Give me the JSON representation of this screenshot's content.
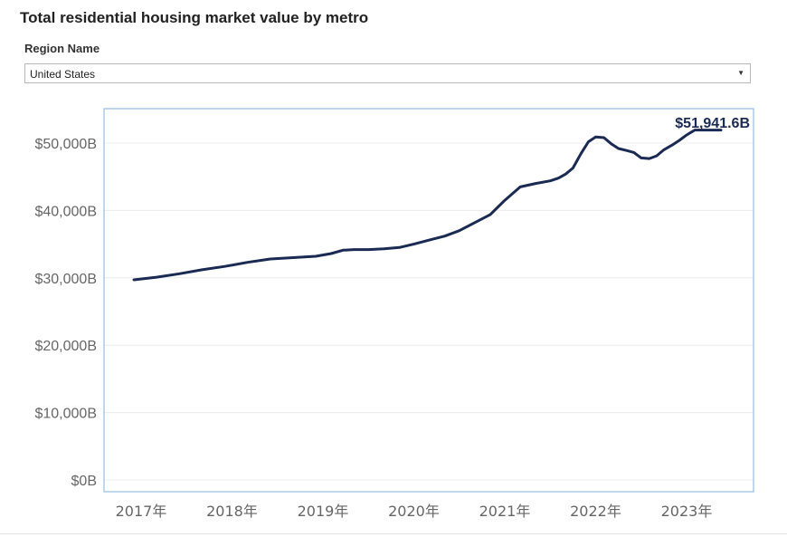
{
  "header": {
    "title": "Total residential housing market value by metro"
  },
  "filter": {
    "label": "Region Name",
    "selected": "United States",
    "arrow_icon": "caret-down-icon"
  },
  "colors": {
    "line": "#1b2a52",
    "border": "#7fb2dd",
    "grid": "#ececec",
    "tick": "#666666"
  },
  "chart_data": {
    "type": "line",
    "title": "Total residential housing market value by metro",
    "xlabel": "",
    "ylabel": "",
    "x_ticks": [
      "2017年",
      "2018年",
      "2019年",
      "2020年",
      "2021年",
      "2022年",
      "2023年"
    ],
    "y_ticks": [
      "$0B",
      "$10,000B",
      "$20,000B",
      "$30,000B",
      "$40,000B",
      "$50,000B"
    ],
    "ylim": [
      0,
      54000
    ],
    "xlim": [
      2017.0,
      2024.0
    ],
    "grid": true,
    "series": [
      {
        "name": "",
        "x": [
          2017.0,
          2017.25,
          2017.5,
          2017.75,
          2018.0,
          2018.25,
          2018.5,
          2018.75,
          2019.0,
          2019.17,
          2019.3,
          2019.42,
          2019.58,
          2019.75,
          2019.92,
          2020.08,
          2020.25,
          2020.42,
          2020.58,
          2020.75,
          2020.92,
          2021.08,
          2021.25,
          2021.42,
          2021.58,
          2021.67,
          2021.75,
          2021.83,
          2021.92,
          2022.0,
          2022.08,
          2022.17,
          2022.25,
          2022.33,
          2022.42,
          2022.5,
          2022.58,
          2022.67,
          2022.75,
          2022.83,
          2022.92,
          2023.0,
          2023.08,
          2023.17,
          2023.25,
          2023.33,
          2023.42,
          2023.5
        ],
        "y": [
          29700,
          30100,
          30600,
          31200,
          31700,
          32300,
          32800,
          33000,
          33200,
          33600,
          34100,
          34200,
          34200,
          34300,
          34500,
          35000,
          35600,
          36200,
          37000,
          38200,
          39400,
          41500,
          43500,
          44000,
          44400,
          44800,
          45400,
          46300,
          48500,
          50200,
          50900,
          50800,
          49900,
          49200,
          48900,
          48600,
          47800,
          47700,
          48100,
          49000,
          49700,
          50400,
          51200,
          51942,
          51942,
          51942,
          51942,
          51942
        ]
      }
    ],
    "annotation": {
      "text": "$51,941.6B",
      "value": 51941.6
    }
  }
}
